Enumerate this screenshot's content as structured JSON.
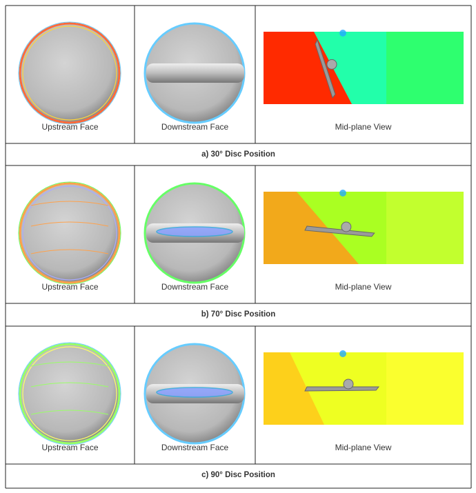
{
  "panels": [
    {
      "views": [
        "Upstream Face",
        "Downstream Face",
        "Mid-plane View"
      ],
      "caption": "a) 30° Disc Position"
    },
    {
      "views": [
        "Upstream Face",
        "Downstream Face",
        "Mid-plane View"
      ],
      "caption": "b) 70° Disc Position"
    },
    {
      "views": [
        "Upstream Face",
        "Downstream Face",
        "Mid-plane View"
      ],
      "caption": "c) 90° Disc Position"
    }
  ]
}
